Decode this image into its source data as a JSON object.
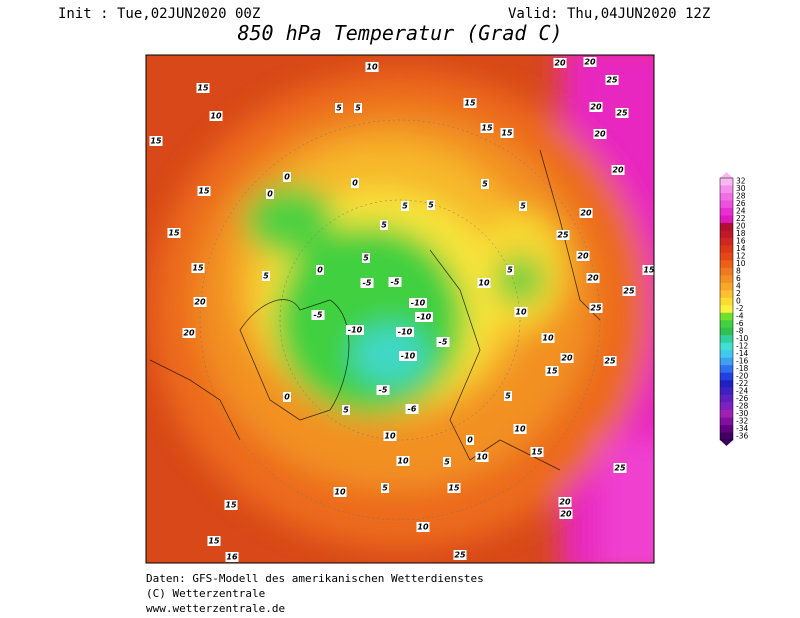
{
  "header": {
    "init": "Init : Tue,02JUN2020 00Z",
    "valid": "Valid: Thu,04JUN2020 12Z",
    "title": "850 hPa Temperatur (Grad C)"
  },
  "colorbar": {
    "levels": [
      32,
      30,
      28,
      26,
      24,
      22,
      20,
      18,
      16,
      14,
      12,
      10,
      8,
      6,
      4,
      2,
      0,
      -2,
      -4,
      -6,
      -8,
      -10,
      -12,
      -14,
      -16,
      -18,
      -20,
      -22,
      -24,
      -26,
      -28,
      -30,
      -32,
      -34,
      -36
    ],
    "colors": [
      "#f8b8f0",
      "#f490ec",
      "#f070e4",
      "#ec50dc",
      "#e830d0",
      "#e018c0",
      "#b01030",
      "#c01828",
      "#d02820",
      "#dc3818",
      "#e44818",
      "#ec6018",
      "#f07820",
      "#f49020",
      "#f8a828",
      "#fcc030",
      "#fcdc30",
      "#fcf040",
      "#70e030",
      "#40d040",
      "#30c050",
      "#30d0a0",
      "#40e0d0",
      "#40c8f0",
      "#40a0f0",
      "#3070f0",
      "#2040e0",
      "#2020c0",
      "#4020c0",
      "#6020c0",
      "#8020c0",
      "#a020b0",
      "#8010a0",
      "#600080",
      "#400060"
    ]
  },
  "contour_labels": [
    "15",
    "10",
    "10",
    "15",
    "15",
    "15",
    "15",
    "20",
    "20",
    "15",
    "15",
    "15",
    "5",
    "5",
    "0",
    "0",
    "0",
    "5",
    "5",
    "5",
    "5",
    "-5",
    "-5",
    "5",
    "0",
    "-10",
    "-10",
    "-10",
    "-10",
    "-10",
    "-5",
    "-5",
    "-5",
    "-6",
    "0",
    "5",
    "10",
    "10",
    "10",
    "5",
    "10",
    "15",
    "15",
    "16",
    "25",
    "5",
    "5",
    "5",
    "10",
    "10",
    "10",
    "20",
    "25",
    "15",
    "5",
    "10",
    "15",
    "20",
    "20",
    "25",
    "25",
    "20",
    "20",
    "25",
    "25",
    "15",
    "20",
    "20",
    "25",
    "20",
    "25",
    "20",
    "20",
    "20",
    "0",
    "15",
    "10",
    "5"
  ],
  "footer": {
    "source": "Daten: GFS-Modell des amerikanischen Wetterdienstes",
    "copyright": "(C) Wetterzentrale",
    "url": "www.wetterzentrale.de"
  }
}
